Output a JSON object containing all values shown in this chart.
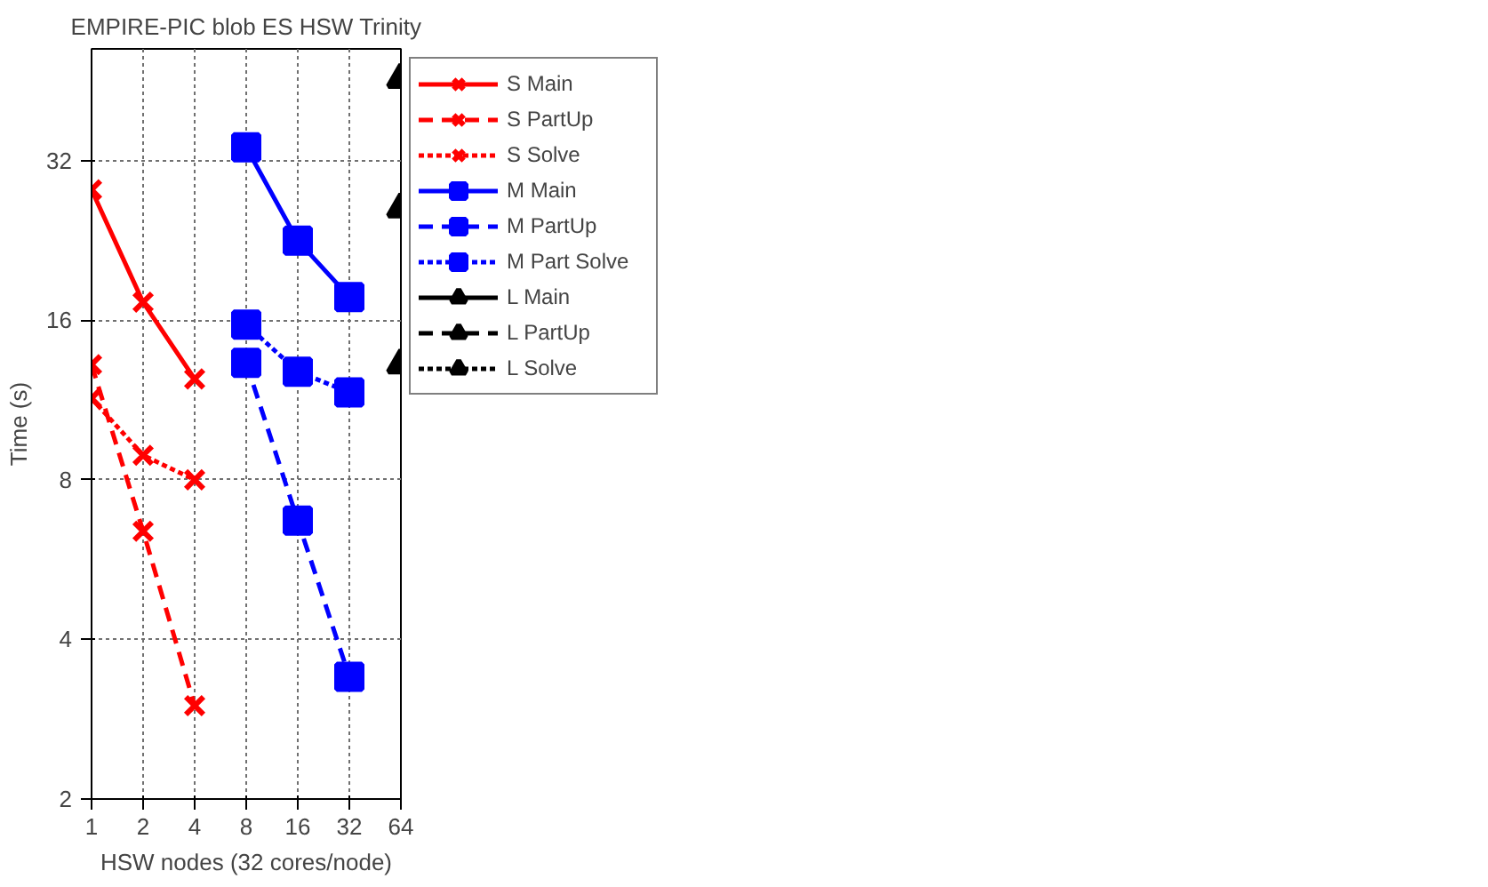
{
  "chart_data": {
    "type": "line",
    "title": "EMPIRE-PIC blob ES HSW Trinity",
    "xlabel": "HSW nodes (32 cores/node)",
    "ylabel": "Time (s)",
    "log": "xy",
    "xlim": [
      1,
      64
    ],
    "xticks": [
      1,
      2,
      4,
      8,
      16,
      32,
      64
    ],
    "ylim": [
      2,
      52
    ],
    "yticks": [
      2,
      4,
      8,
      16,
      32
    ],
    "grid": true,
    "legend": "right",
    "series": [
      {
        "name": "S Main",
        "color": "#ff0000",
        "marker": "cross",
        "line_style": "solid",
        "x": [
          1,
          2,
          4
        ],
        "values": [
          28.2,
          17.3,
          12.4
        ]
      },
      {
        "name": "S PartUp",
        "color": "#ff0000",
        "marker": "cross",
        "line_style": "dashed",
        "x": [
          1,
          2,
          4
        ],
        "values": [
          13.2,
          6.4,
          3.0
        ]
      },
      {
        "name": "S Solve",
        "color": "#ff0000",
        "marker": "cross",
        "line_style": "dotted",
        "x": [
          1,
          2,
          4
        ],
        "values": [
          11.4,
          8.9,
          8.0
        ]
      },
      {
        "name": "M Main",
        "color": "#0000ff",
        "marker": "square",
        "line_style": "solid",
        "x": [
          8,
          16,
          32
        ],
        "values": [
          33.9,
          22.6,
          17.7
        ]
      },
      {
        "name": "M PartUp",
        "color": "#0000ff",
        "marker": "square",
        "line_style": "dashed",
        "x": [
          8,
          16,
          32
        ],
        "values": [
          13.3,
          6.7,
          3.4
        ]
      },
      {
        "name": "M Part Solve",
        "color": "#0000ff",
        "marker": "square",
        "line_style": "dotted",
        "x": [
          8,
          16,
          32
        ],
        "values": [
          15.7,
          12.8,
          11.7
        ]
      },
      {
        "name": "L Main",
        "color": "#000000",
        "marker": "triangle",
        "line_style": "solid",
        "x": [
          64
        ],
        "values": [
          45.6
        ]
      },
      {
        "name": "L PartUp",
        "color": "#000000",
        "marker": "triangle",
        "line_style": "dashed",
        "x": [
          64
        ],
        "values": [
          13.2
        ]
      },
      {
        "name": "L Solve",
        "color": "#000000",
        "marker": "triangle",
        "line_style": "dotted",
        "x": [
          64
        ],
        "values": [
          26
        ]
      }
    ]
  }
}
